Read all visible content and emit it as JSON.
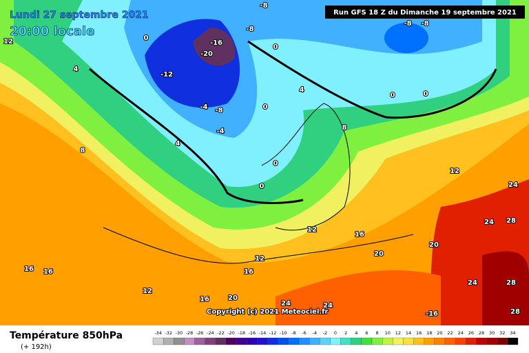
{
  "header": {
    "date": "Lundi 27 septembre 2021",
    "time": "20:00 locale",
    "run": "Run GFS 18 Z du Dimanche 19 septembre 2021"
  },
  "copyright": "Copyright (c) 2021 Meteociel.fr",
  "map_labels": [
    -16,
    -20,
    -12,
    -8,
    -4,
    -4,
    -8,
    -8,
    -8,
    -8,
    0,
    0,
    0,
    0,
    0,
    0,
    0,
    4,
    4,
    4,
    8,
    8,
    12,
    12,
    12,
    12,
    16,
    16,
    16,
    16,
    20,
    20,
    24,
    24,
    24,
    28,
    28,
    28,
    -16,
    12,
    16,
    20,
    24,
    24
  ],
  "footer": {
    "title": "Température 850hPa",
    "lead": "(+ 192h)"
  },
  "scale": {
    "values": [
      -34,
      -32,
      -30,
      -28,
      -26,
      -24,
      -22,
      -20,
      -18,
      -16,
      -14,
      -12,
      -10,
      -8,
      -6,
      -4,
      -2,
      0,
      2,
      4,
      6,
      8,
      10,
      12,
      14,
      16,
      18,
      20,
      22,
      24,
      26,
      28,
      30,
      32,
      34
    ],
    "colors": [
      "#d0d0d0",
      "#b0b0b0",
      "#909090",
      "#c090c0",
      "#a060a0",
      "#804080",
      "#603060",
      "#500060",
      "#400090",
      "#3000b0",
      "#2010d0",
      "#1030e0",
      "#0050f0",
      "#0070ff",
      "#2090ff",
      "#40b0ff",
      "#60d0ff",
      "#80f0ff",
      "#40e0c0",
      "#30d080",
      "#40e040",
      "#80f040",
      "#c0f040",
      "#f0f060",
      "#f8e040",
      "#ffc020",
      "#ffa000",
      "#ff8000",
      "#ff6000",
      "#ff4000",
      "#e02000",
      "#c00000",
      "#a00000",
      "#800000",
      "#000000"
    ]
  }
}
